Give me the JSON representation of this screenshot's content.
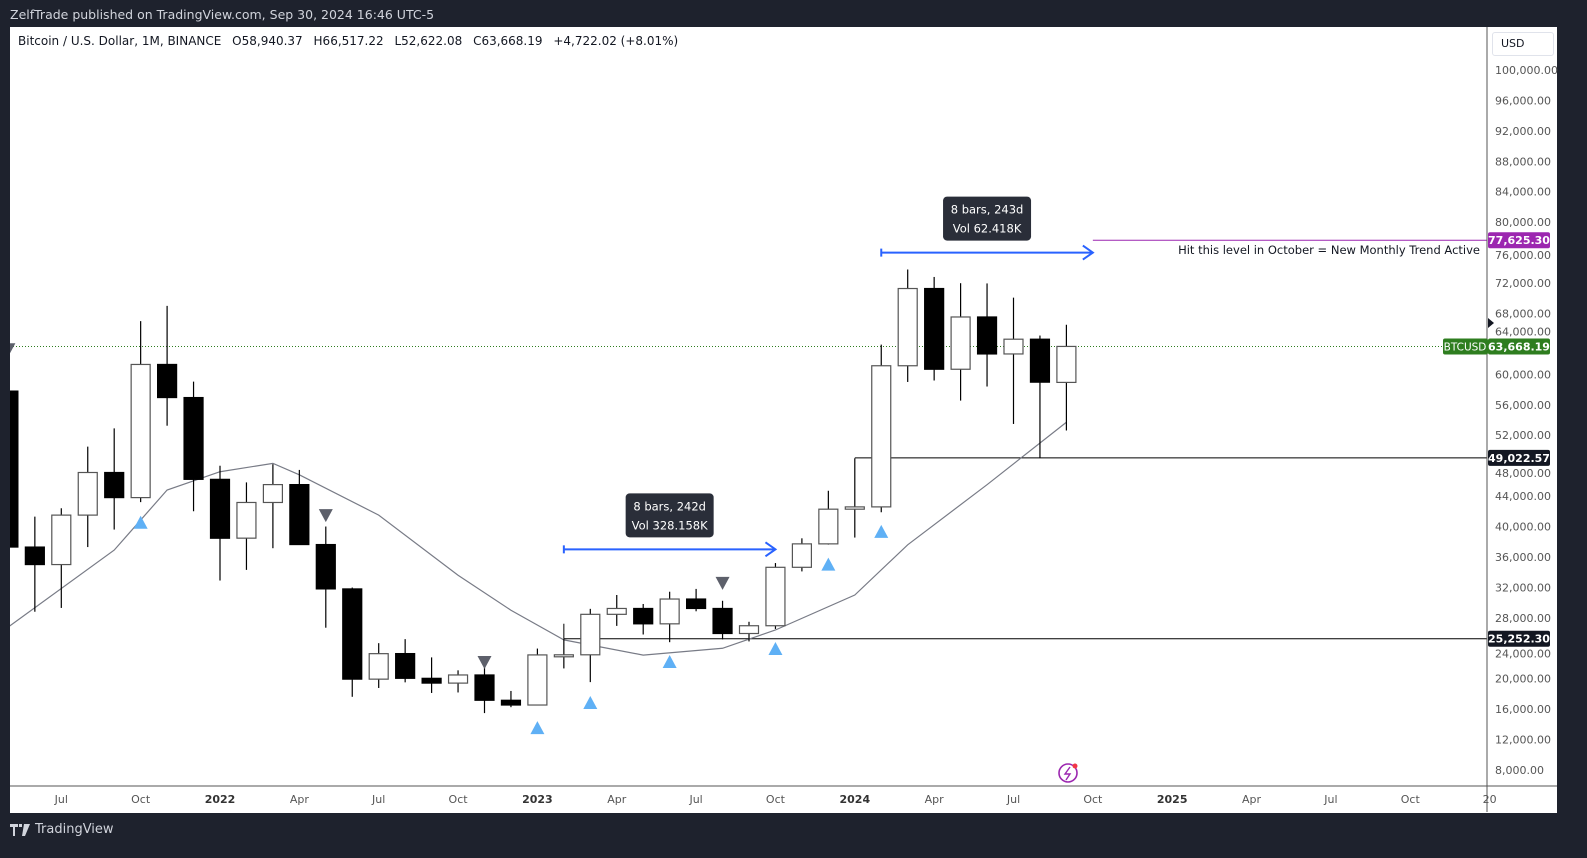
{
  "publisher_line": "ZelfTrade published on TradingView.com, Sep 30, 2024 16:46 UTC-5",
  "legend": {
    "symbol": "Bitcoin / U.S. Dollar, 1M, BINANCE",
    "open": "O58,940.37",
    "high": "H66,517.22",
    "low": "L52,622.08",
    "close": "C63,668.19",
    "change": "+4,722.02 (+8.01%)"
  },
  "currency_button": "USD",
  "footer_brand": "TradingView",
  "colors": {
    "up_body": "#ffffff",
    "down_body": "#000000",
    "signal_up": "#5fb0f5",
    "signal_down": "#5d606b",
    "ma": "#787b86",
    "measure": "#2962ff",
    "target_level": "#9c27b0",
    "price_label": "#2e7d1f"
  },
  "chart_data": {
    "type": "candlestick",
    "interval": "1M",
    "y_scale": "linear",
    "ylim": [
      6000,
      104000
    ],
    "y_ticks": [
      "100,000.00",
      "96,000.00",
      "92,000.00",
      "88,000.00",
      "84,000.00",
      "80,000.00",
      "76,000.00",
      "72,000.00",
      "68,000.00",
      "64,000.00",
      "60,000.00",
      "56,000.00",
      "52,000.00",
      "48,000.00",
      "44,000.00",
      "40,000.00",
      "36,000.00",
      "32,000.00",
      "28,000.00",
      "24,000.00",
      "20,000.00",
      "16,000.00",
      "12,000.00",
      "8,000.00"
    ],
    "x_ticks": [
      {
        "date": "2021-07",
        "label": "Jul"
      },
      {
        "date": "2021-10",
        "label": "Oct"
      },
      {
        "date": "2022-01",
        "label": "2022"
      },
      {
        "date": "2022-04",
        "label": "Apr"
      },
      {
        "date": "2022-07",
        "label": "Jul"
      },
      {
        "date": "2022-10",
        "label": "Oct"
      },
      {
        "date": "2023-01",
        "label": "2023"
      },
      {
        "date": "2023-04",
        "label": "Apr"
      },
      {
        "date": "2023-07",
        "label": "Jul"
      },
      {
        "date": "2023-10",
        "label": "Oct"
      },
      {
        "date": "2024-01",
        "label": "2024"
      },
      {
        "date": "2024-04",
        "label": "Apr"
      },
      {
        "date": "2024-07",
        "label": "Jul"
      },
      {
        "date": "2024-10",
        "label": "Oct"
      },
      {
        "date": "2025-01",
        "label": "2025"
      },
      {
        "date": "2025-04",
        "label": "Apr"
      },
      {
        "date": "2025-07",
        "label": "Jul"
      },
      {
        "date": "2025-10",
        "label": "Oct"
      },
      {
        "date": "2026-01",
        "label": "20"
      }
    ],
    "candles_columns": [
      "date",
      "open",
      "high",
      "low",
      "close"
    ],
    "candles": [
      [
        "2021-05",
        57800,
        59500,
        30000,
        37300
      ],
      [
        "2021-06",
        37300,
        41300,
        28800,
        35000
      ],
      [
        "2021-07",
        35000,
        42400,
        29300,
        41500
      ],
      [
        "2021-08",
        41500,
        50500,
        37300,
        47100
      ],
      [
        "2021-09",
        47100,
        52900,
        39600,
        43800
      ],
      [
        "2021-10",
        43800,
        67000,
        43200,
        61300
      ],
      [
        "2021-11",
        61300,
        69000,
        53250,
        56950
      ],
      [
        "2021-12",
        56950,
        59050,
        42000,
        46200
      ],
      [
        "2022-01",
        46200,
        47990,
        32900,
        38460
      ],
      [
        "2022-02",
        38470,
        45800,
        34300,
        43160
      ],
      [
        "2022-03",
        43160,
        48190,
        37150,
        45510
      ],
      [
        "2022-04",
        45510,
        47440,
        37580,
        37630
      ],
      [
        "2022-05",
        37630,
        40000,
        26700,
        31800
      ],
      [
        "2022-06",
        31800,
        31980,
        17620,
        19940
      ],
      [
        "2022-07",
        19940,
        24670,
        18780,
        23290
      ],
      [
        "2022-08",
        23300,
        25200,
        19520,
        20050
      ],
      [
        "2022-09",
        20050,
        22800,
        18125,
        19420
      ],
      [
        "2022-10",
        19420,
        21100,
        18190,
        20490
      ],
      [
        "2022-11",
        20490,
        21480,
        15480,
        17165
      ],
      [
        "2022-12",
        17165,
        18390,
        16256,
        16540
      ],
      [
        "2023-01",
        16540,
        23960,
        16500,
        23125
      ],
      [
        "2023-02",
        23125,
        25250,
        21350,
        23140
      ],
      [
        "2023-03",
        23140,
        29180,
        19550,
        28460
      ],
      [
        "2023-04",
        28460,
        31000,
        26940,
        29230
      ],
      [
        "2023-05",
        29230,
        29820,
        25810,
        27210
      ],
      [
        "2023-06",
        27210,
        31430,
        24800,
        30470
      ],
      [
        "2023-07",
        30470,
        31800,
        28860,
        29230
      ],
      [
        "2023-08",
        29230,
        30240,
        25170,
        25940
      ],
      [
        "2023-09",
        25940,
        27480,
        24900,
        26960
      ],
      [
        "2023-10",
        26960,
        35200,
        26540,
        34640
      ],
      [
        "2023-11",
        34640,
        38450,
        34100,
        37720
      ],
      [
        "2023-12",
        37720,
        44700,
        37620,
        42280
      ],
      [
        "2024-01",
        42280,
        48970,
        38550,
        42580
      ],
      [
        "2024-02",
        42580,
        63910,
        41880,
        61130
      ],
      [
        "2024-03",
        61130,
        73780,
        59000,
        71280
      ],
      [
        "2024-04",
        71280,
        72800,
        59190,
        60670
      ],
      [
        "2024-05",
        60670,
        71980,
        56550,
        67540
      ],
      [
        "2024-06",
        67540,
        71950,
        58400,
        62680
      ],
      [
        "2024-07",
        62680,
        70080,
        53480,
        64620
      ],
      [
        "2024-08",
        64620,
        65100,
        49000,
        58970
      ],
      [
        "2024-09",
        58940.37,
        66517.22,
        52622.08,
        63668.19
      ]
    ],
    "moving_average": [
      [
        "2021-05",
        26800
      ],
      [
        "2021-09",
        36900
      ],
      [
        "2021-11",
        44800
      ],
      [
        "2022-01",
        47200
      ],
      [
        "2022-03",
        48300
      ],
      [
        "2022-04",
        46800
      ],
      [
        "2022-07",
        41500
      ],
      [
        "2022-10",
        33600
      ],
      [
        "2022-12",
        29000
      ],
      [
        "2023-02",
        25100
      ],
      [
        "2023-05",
        23100
      ],
      [
        "2023-08",
        24000
      ],
      [
        "2023-10",
        26400
      ],
      [
        "2024-01",
        31000
      ],
      [
        "2024-03",
        37600
      ],
      [
        "2024-06",
        45500
      ],
      [
        "2024-09",
        53700
      ]
    ],
    "signals_up": [
      [
        "2021-10",
        40500
      ],
      [
        "2023-01",
        13500
      ],
      [
        "2023-03",
        16800
      ],
      [
        "2023-06",
        22200
      ],
      [
        "2023-10",
        23900
      ],
      [
        "2023-12",
        35000
      ],
      [
        "2024-02",
        39300
      ]
    ],
    "signals_down": [
      [
        "2021-05",
        63300
      ],
      [
        "2022-05",
        41500
      ],
      [
        "2022-11",
        22200
      ],
      [
        "2023-08",
        32600
      ]
    ],
    "horizontal_levels": [
      {
        "price": 25252.3,
        "label": "25,252.30",
        "from": "2023-02"
      },
      {
        "price": 49022.57,
        "label": "49,022.57",
        "from": "2024-01"
      },
      {
        "price": 77625.3,
        "label": "77,625.30",
        "from": "2024-10",
        "note": "Hit this level in October = New Monthly Trend Active"
      }
    ],
    "measurements": [
      {
        "from": "2023-02",
        "to": "2023-10",
        "price": 37000,
        "line1": "8 bars, 242d",
        "line2": "Vol 328.158K"
      },
      {
        "from": "2024-02",
        "to": "2024-10",
        "price": 76000,
        "line1": "8 bars, 243d",
        "line2": "Vol 62.418K"
      }
    ],
    "last_price": {
      "symbol": "BTCUSD",
      "value": 63668.19,
      "label": "63,668.19"
    }
  }
}
